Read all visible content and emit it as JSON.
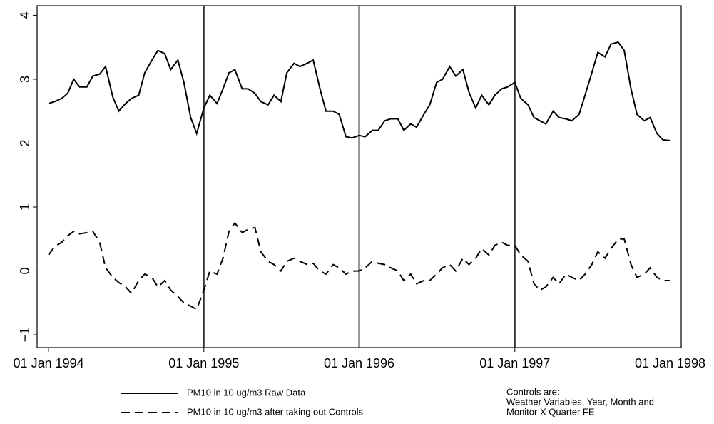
{
  "chart_data": {
    "type": "line",
    "x": [
      "1994-01-01",
      "1994-01-15",
      "1994-02-01",
      "1994-02-15",
      "1994-03-01",
      "1994-03-15",
      "1994-04-01",
      "1994-04-15",
      "1994-05-01",
      "1994-05-15",
      "1994-06-01",
      "1994-06-15",
      "1994-07-01",
      "1994-07-15",
      "1994-08-01",
      "1994-08-15",
      "1994-09-01",
      "1994-09-15",
      "1994-10-01",
      "1994-10-15",
      "1994-11-01",
      "1994-11-15",
      "1994-12-01",
      "1994-12-15",
      "1995-01-01",
      "1995-01-15",
      "1995-02-01",
      "1995-02-15",
      "1995-03-01",
      "1995-03-15",
      "1995-04-01",
      "1995-04-15",
      "1995-05-01",
      "1995-05-15",
      "1995-06-01",
      "1995-06-15",
      "1995-07-01",
      "1995-07-15",
      "1995-08-01",
      "1995-08-15",
      "1995-09-01",
      "1995-09-15",
      "1995-10-01",
      "1995-10-15",
      "1995-11-01",
      "1995-11-15",
      "1995-12-01",
      "1995-12-15",
      "1996-01-01",
      "1996-01-15",
      "1996-02-01",
      "1996-02-15",
      "1996-03-01",
      "1996-03-15",
      "1996-04-01",
      "1996-04-15",
      "1996-05-01",
      "1996-05-15",
      "1996-06-01",
      "1996-06-15",
      "1996-07-01",
      "1996-07-15",
      "1996-08-01",
      "1996-08-15",
      "1996-09-01",
      "1996-09-15",
      "1996-10-01",
      "1996-10-15",
      "1996-11-01",
      "1996-11-15",
      "1996-12-01",
      "1996-12-15",
      "1997-01-01",
      "1997-01-15",
      "1997-02-01",
      "1997-02-15",
      "1997-03-01",
      "1997-03-15",
      "1997-04-01",
      "1997-04-15",
      "1997-05-01",
      "1997-05-15",
      "1997-06-01",
      "1997-06-15",
      "1997-07-01",
      "1997-07-15",
      "1997-08-01",
      "1997-08-15",
      "1997-09-01",
      "1997-09-15",
      "1997-10-01",
      "1997-10-15",
      "1997-11-01",
      "1997-11-15",
      "1997-12-01",
      "1997-12-15",
      "1998-01-01"
    ],
    "series": [
      {
        "name": "PM10 in 10 ug/m3 Raw Data",
        "color": "#000000",
        "dash": "solid",
        "values": [
          2.62,
          2.65,
          2.7,
          2.78,
          3.0,
          2.88,
          2.88,
          3.05,
          3.08,
          3.2,
          2.72,
          2.5,
          2.62,
          2.7,
          2.75,
          3.1,
          3.3,
          3.45,
          3.4,
          3.15,
          3.3,
          2.95,
          2.4,
          2.15,
          2.55,
          2.75,
          2.62,
          2.85,
          3.1,
          3.15,
          2.85,
          2.85,
          2.78,
          2.65,
          2.6,
          2.75,
          2.65,
          3.1,
          3.25,
          3.2,
          3.25,
          3.3,
          2.85,
          2.5,
          2.5,
          2.45,
          2.1,
          2.08,
          2.12,
          2.1,
          2.2,
          2.2,
          2.35,
          2.38,
          2.38,
          2.2,
          2.3,
          2.25,
          2.45,
          2.6,
          2.95,
          3.0,
          3.2,
          3.05,
          3.15,
          2.8,
          2.55,
          2.75,
          2.6,
          2.75,
          2.85,
          2.88,
          2.95,
          2.7,
          2.6,
          2.4,
          2.35,
          2.3,
          2.5,
          2.4,
          2.38,
          2.35,
          2.45,
          2.75,
          3.1,
          3.42,
          3.35,
          3.55,
          3.58,
          3.45,
          2.85,
          2.45,
          2.35,
          2.4,
          2.15,
          2.05,
          2.04
        ]
      },
      {
        "name": "PM10 in 10 ug/m3 after taking out Controls",
        "color": "#000000",
        "dash": "dashed",
        "values": [
          0.25,
          0.38,
          0.45,
          0.55,
          0.62,
          0.58,
          0.6,
          0.62,
          0.45,
          0.05,
          -0.1,
          -0.18,
          -0.25,
          -0.35,
          -0.15,
          -0.05,
          -0.1,
          -0.25,
          -0.15,
          -0.3,
          -0.4,
          -0.5,
          -0.55,
          -0.6,
          -0.3,
          0.0,
          -0.05,
          0.2,
          0.62,
          0.75,
          0.6,
          0.65,
          0.68,
          0.3,
          0.15,
          0.1,
          0.0,
          0.15,
          0.2,
          0.15,
          0.1,
          0.12,
          0.0,
          -0.05,
          0.1,
          0.05,
          -0.05,
          0.0,
          0.0,
          0.05,
          0.15,
          0.12,
          0.1,
          0.05,
          0.0,
          -0.15,
          -0.05,
          -0.2,
          -0.15,
          -0.15,
          -0.05,
          0.05,
          0.1,
          0.0,
          0.2,
          0.1,
          0.2,
          0.35,
          0.25,
          0.4,
          0.45,
          0.4,
          0.4,
          0.25,
          0.15,
          -0.2,
          -0.3,
          -0.25,
          -0.1,
          -0.2,
          -0.05,
          -0.1,
          -0.15,
          -0.05,
          0.1,
          0.3,
          0.2,
          0.35,
          0.5,
          0.5,
          0.1,
          -0.1,
          -0.05,
          0.05,
          -0.1,
          -0.15,
          -0.15
        ]
      }
    ],
    "xlim": [
      "1993-12-05",
      "1998-01-27"
    ],
    "xticks": [
      {
        "value": "1994-01-01",
        "label": "01 Jan 1994"
      },
      {
        "value": "1995-01-01",
        "label": "01 Jan 1995"
      },
      {
        "value": "1996-01-01",
        "label": "01 Jan 1996"
      },
      {
        "value": "1997-01-01",
        "label": "01 Jan 1997"
      },
      {
        "value": "1998-01-01",
        "label": "01 Jan 1998"
      }
    ],
    "vlines": [
      "1995-01-01",
      "1996-01-01",
      "1997-01-01"
    ],
    "ylim": [
      -1.2,
      4.15
    ],
    "yticks": [
      {
        "value": -1,
        "label": "−1"
      },
      0,
      1,
      2,
      3,
      4
    ],
    "note": [
      "Controls are:",
      "Weather Variables, Year, Month and",
      "Monitor X Quarter FE"
    ]
  }
}
